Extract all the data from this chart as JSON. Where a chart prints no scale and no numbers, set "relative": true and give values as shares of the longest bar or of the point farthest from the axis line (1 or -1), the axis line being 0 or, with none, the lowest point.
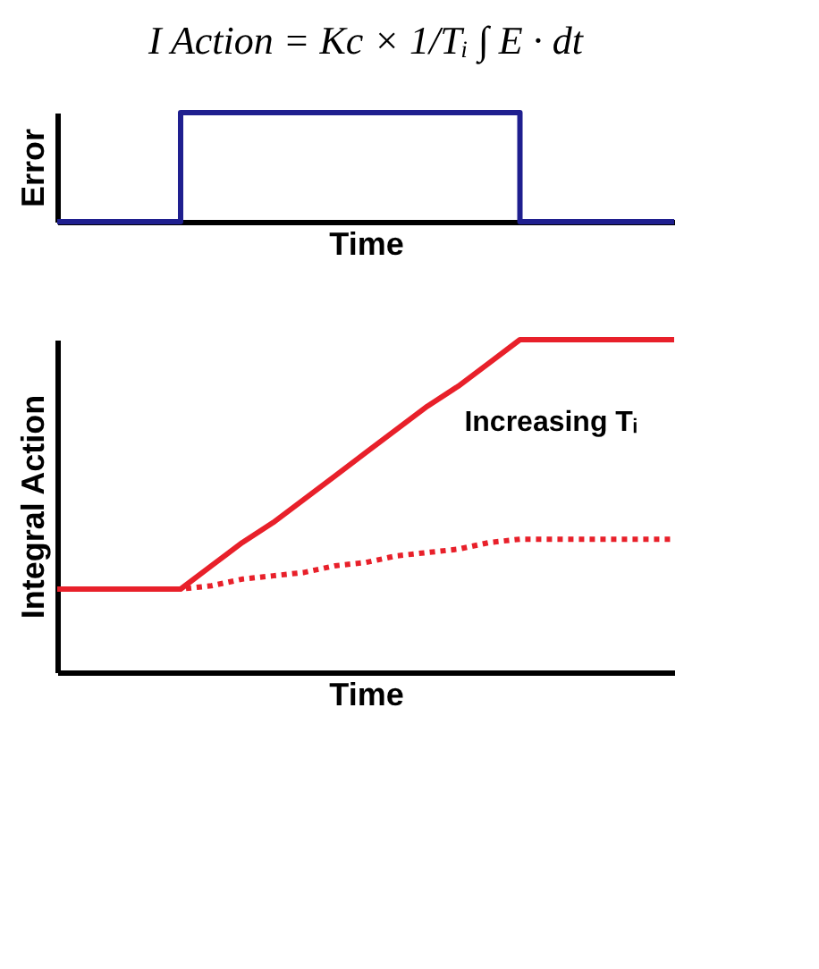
{
  "chart_data": [
    {
      "type": "step",
      "title": "I Action = Kc × 1/Tᵢ ∫ E · dt",
      "xlabel": "Time",
      "ylabel": "Error",
      "relative": true,
      "grid": false,
      "categories": [
        null,
        null,
        null,
        null,
        null,
        null,
        null,
        null,
        null,
        null,
        null,
        null,
        null,
        null,
        null,
        null,
        null,
        null,
        null,
        null,
        null
      ],
      "series": [
        {
          "color": "#1f1f8f",
          "values": [
            0,
            0,
            0,
            0,
            1,
            1,
            1,
            1,
            1,
            1,
            1,
            1,
            1,
            1,
            1,
            0,
            0,
            0,
            0,
            0,
            0
          ]
        }
      ]
    },
    {
      "type": "line",
      "xlabel": "Time",
      "ylabel": "Integral Action",
      "relative": true,
      "grid": false,
      "annotations": [
        "Increasing Tᵢ"
      ],
      "categories": [
        null,
        null,
        null,
        null,
        null,
        null,
        null,
        null,
        null,
        null,
        null,
        null,
        null,
        null,
        null,
        null,
        null,
        null,
        null,
        null,
        null
      ],
      "series": [
        {
          "color": "#e8202a",
          "line_style": "solid",
          "values": [
            0.25,
            0.25,
            0.25,
            0.25,
            0.25,
            0.32,
            0.39,
            0.45,
            0.52,
            0.59,
            0.66,
            0.73,
            0.8,
            0.86,
            0.93,
            1.0,
            1.0,
            1.0,
            1.0,
            1.0,
            1.0
          ]
        },
        {
          "color": "#e8202a",
          "line_style": "dotted",
          "values": [
            0.25,
            0.25,
            0.25,
            0.25,
            0.25,
            0.26,
            0.28,
            0.29,
            0.3,
            0.32,
            0.33,
            0.35,
            0.36,
            0.37,
            0.39,
            0.4,
            0.4,
            0.4,
            0.4,
            0.4,
            0.4
          ]
        }
      ]
    }
  ]
}
